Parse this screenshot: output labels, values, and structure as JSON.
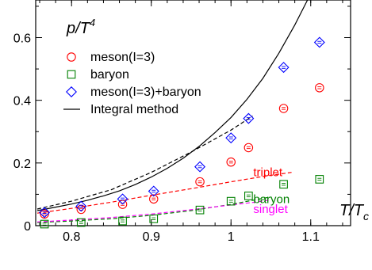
{
  "chart_data": {
    "type": "scatter",
    "title": "",
    "ylabel_main": "p/T",
    "ylabel_exp": "4",
    "xlabel_main": "T/T",
    "xlabel_sub": "c",
    "xlim": [
      0.755,
      1.15
    ],
    "ylim": [
      0,
      0.72
    ],
    "x_ticks": [
      0.8,
      0.9,
      1.0,
      1.1
    ],
    "x_tick_labels": [
      "0.8",
      "0.9",
      "1",
      "1.1"
    ],
    "y_ticks": [
      0,
      0.2,
      0.4,
      0.6
    ],
    "y_tick_labels": [
      "0",
      "0.2",
      "0.4",
      "0.6"
    ],
    "legend_position": "top-left",
    "series": [
      {
        "name": "meson(I=3)",
        "kind": "points",
        "marker": "circle",
        "color": "#ff0000",
        "points": [
          [
            0.766,
            0.037
          ],
          [
            0.812,
            0.052
          ],
          [
            0.864,
            0.068
          ],
          [
            0.903,
            0.085
          ],
          [
            0.961,
            0.14
          ],
          [
            1.0,
            0.203
          ],
          [
            1.022,
            0.249
          ],
          [
            1.066,
            0.374
          ],
          [
            1.111,
            0.44
          ]
        ]
      },
      {
        "name": "baryon",
        "kind": "points",
        "marker": "square",
        "color": "#008000",
        "points": [
          [
            0.766,
            0.005
          ],
          [
            0.812,
            0.01
          ],
          [
            0.864,
            0.015
          ],
          [
            0.903,
            0.022
          ],
          [
            0.961,
            0.05
          ],
          [
            1.0,
            0.078
          ],
          [
            1.022,
            0.095
          ],
          [
            1.066,
            0.132
          ],
          [
            1.111,
            0.148
          ]
        ]
      },
      {
        "name": "meson(I=3)+baryon",
        "kind": "points",
        "marker": "diamond",
        "color": "#0000ff",
        "points": [
          [
            0.766,
            0.042
          ],
          [
            0.812,
            0.062
          ],
          [
            0.864,
            0.085
          ],
          [
            0.903,
            0.11
          ],
          [
            0.961,
            0.188
          ],
          [
            1.0,
            0.28
          ],
          [
            1.022,
            0.342
          ],
          [
            1.066,
            0.505
          ],
          [
            1.111,
            0.585
          ]
        ]
      },
      {
        "name": "Integral method",
        "kind": "line",
        "style": "solid",
        "color": "#000000",
        "points": [
          [
            0.757,
            0.048
          ],
          [
            0.78,
            0.059
          ],
          [
            0.8,
            0.069
          ],
          [
            0.82,
            0.081
          ],
          [
            0.84,
            0.095
          ],
          [
            0.86,
            0.111
          ],
          [
            0.88,
            0.131
          ],
          [
            0.9,
            0.155
          ],
          [
            0.92,
            0.183
          ],
          [
            0.94,
            0.215
          ],
          [
            0.96,
            0.253
          ],
          [
            0.98,
            0.297
          ],
          [
            1.0,
            0.345
          ],
          [
            1.02,
            0.403
          ],
          [
            1.04,
            0.47
          ],
          [
            1.06,
            0.55
          ],
          [
            1.08,
            0.64
          ],
          [
            1.096,
            0.72
          ]
        ]
      },
      {
        "kind": "line",
        "style": "dashed",
        "color": "#000000",
        "points": [
          [
            0.757,
            0.053
          ],
          [
            0.8,
            0.078
          ],
          [
            0.85,
            0.115
          ],
          [
            0.9,
            0.17
          ],
          [
            0.95,
            0.235
          ],
          [
            1.0,
            0.305
          ],
          [
            1.027,
            0.35
          ]
        ]
      },
      {
        "kind": "line",
        "style": "dashed",
        "color": "#ff0000",
        "points": [
          [
            0.757,
            0.04
          ],
          [
            0.8,
            0.055
          ],
          [
            0.85,
            0.075
          ],
          [
            0.9,
            0.097
          ],
          [
            0.95,
            0.118
          ],
          [
            1.0,
            0.14
          ],
          [
            1.04,
            0.157
          ],
          [
            1.076,
            0.17
          ]
        ]
      },
      {
        "kind": "line",
        "style": "dashed",
        "color": "#008000",
        "points": [
          [
            0.757,
            0.01
          ],
          [
            0.8,
            0.015
          ],
          [
            0.85,
            0.022
          ],
          [
            0.9,
            0.033
          ],
          [
            0.95,
            0.048
          ],
          [
            1.0,
            0.068
          ],
          [
            1.03,
            0.082
          ],
          [
            1.05,
            0.092
          ]
        ]
      },
      {
        "kind": "line",
        "style": "dashed",
        "color": "#ff00ff",
        "points": [
          [
            0.757,
            0.012
          ],
          [
            0.8,
            0.018
          ],
          [
            0.85,
            0.026
          ],
          [
            0.9,
            0.037
          ],
          [
            0.95,
            0.051
          ],
          [
            1.0,
            0.066
          ],
          [
            1.03,
            0.075
          ],
          [
            1.05,
            0.082
          ]
        ]
      }
    ],
    "annotations": [
      {
        "text": "triplet",
        "color": "#ff0000",
        "x": 1.028,
        "y": 0.17
      },
      {
        "text": "baryon",
        "color": "#008000",
        "x": 1.028,
        "y": 0.085
      },
      {
        "text": "singlet",
        "color": "#ff00ff",
        "x": 1.028,
        "y": 0.053
      }
    ]
  }
}
